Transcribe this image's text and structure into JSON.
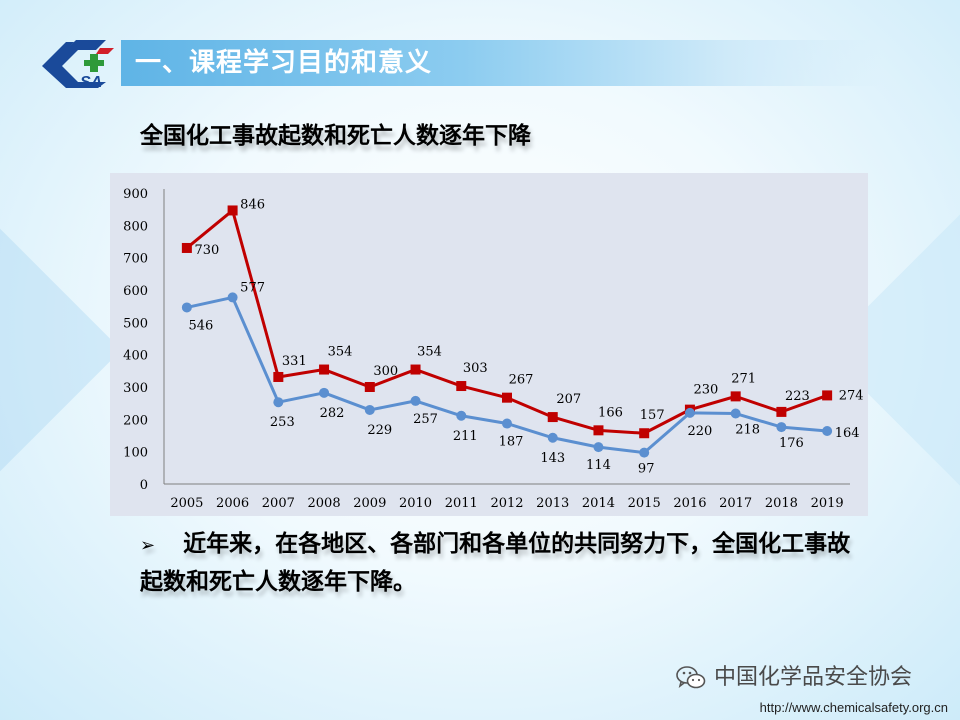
{
  "header": {
    "logo_text": "SA",
    "title": "一、课程学习目的和意义"
  },
  "subtitle": "全国化工事故起数和死亡人数逐年下降",
  "bullet": {
    "marker": "➢",
    "text": "近年来，在各地区、各部门和各单位的共同努力下，全国化工事故起数和死亡人数逐年下降。"
  },
  "footer": {
    "org": "中国化学品安全协会",
    "url": "http://www.chemicalsafety.org.cn"
  },
  "chart_data": {
    "type": "line",
    "title": "",
    "xlabel": "",
    "ylabel": "",
    "ylim": [
      0,
      900
    ],
    "yticks": [
      0,
      100,
      200,
      300,
      400,
      500,
      600,
      700,
      800,
      900
    ],
    "x": [
      "2005",
      "2006",
      "2007",
      "2008",
      "2009",
      "2010",
      "2011",
      "2012",
      "2013",
      "2014",
      "2015",
      "2016",
      "2017",
      "2018",
      "2019"
    ],
    "grid": false,
    "legend": "none",
    "series": [
      {
        "color": "#c00000",
        "marker": "square",
        "values": [
          730,
          846,
          331,
          354,
          300,
          354,
          303,
          267,
          207,
          166,
          157,
          230,
          271,
          223,
          274
        ]
      },
      {
        "color": "#5b8fd0",
        "marker": "circle",
        "values": [
          546,
          577,
          253,
          282,
          229,
          257,
          211,
          187,
          143,
          114,
          97,
          220,
          218,
          176,
          164
        ]
      }
    ]
  }
}
